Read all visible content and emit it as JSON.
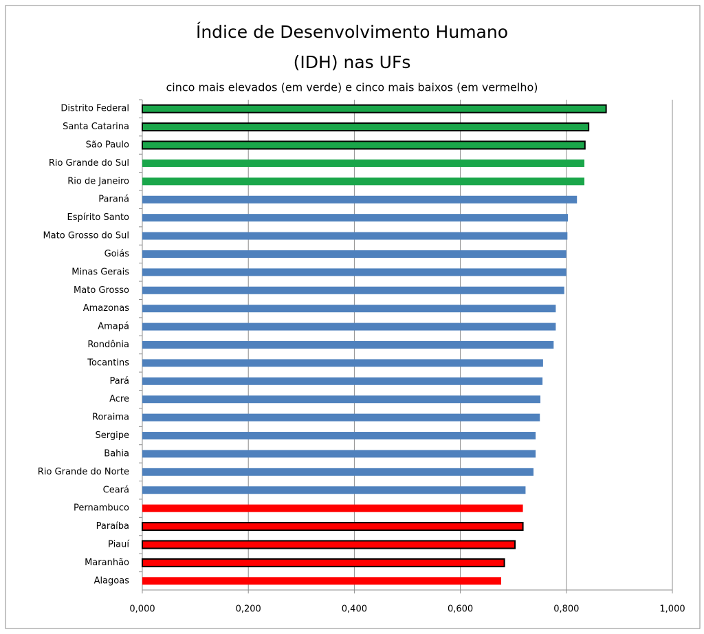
{
  "chart_data": {
    "type": "bar",
    "orientation": "horizontal",
    "title": [
      "Índice de Desenvolvimento Humano",
      "(IDH) nas UFs"
    ],
    "subtitle": "cinco mais elevados (em verde) e cinco mais baixos (em vermelho)",
    "categories": [
      "Distrito Federal",
      "Santa Catarina",
      "São Paulo",
      "Rio Grande do Sul",
      "Rio de Janeiro",
      "Paraná",
      "Espírito Santo",
      "Mato Grosso do Sul",
      "Goiás",
      "Minas Gerais",
      "Mato Grosso",
      "Amazonas",
      "Amapá",
      "Rondônia",
      "Tocantins",
      "Pará",
      "Acre",
      "Roraima",
      "Sergipe",
      "Bahia",
      "Rio Grande do Norte",
      "Ceará",
      "Pernambuco",
      "Paraíba",
      "Piauí",
      "Maranhão",
      "Alagoas"
    ],
    "values": [
      0.875,
      0.842,
      0.835,
      0.834,
      0.834,
      0.82,
      0.803,
      0.802,
      0.8,
      0.8,
      0.796,
      0.78,
      0.78,
      0.776,
      0.756,
      0.755,
      0.751,
      0.75,
      0.742,
      0.742,
      0.738,
      0.723,
      0.718,
      0.718,
      0.703,
      0.683,
      0.677
    ],
    "colors": [
      "#1aa64a",
      "#1aa64a",
      "#1aa64a",
      "#1aa64a",
      "#1aa64a",
      "#4f81bd",
      "#4f81bd",
      "#4f81bd",
      "#4f81bd",
      "#4f81bd",
      "#4f81bd",
      "#4f81bd",
      "#4f81bd",
      "#4f81bd",
      "#4f81bd",
      "#4f81bd",
      "#4f81bd",
      "#4f81bd",
      "#4f81bd",
      "#4f81bd",
      "#4f81bd",
      "#4f81bd",
      "#ff0000",
      "#ff0000",
      "#ff0000",
      "#ff0000",
      "#ff0000"
    ],
    "outlined": [
      true,
      true,
      true,
      false,
      false,
      false,
      false,
      false,
      false,
      false,
      false,
      false,
      false,
      false,
      false,
      false,
      false,
      false,
      false,
      false,
      false,
      false,
      false,
      true,
      true,
      true,
      false
    ],
    "xlim": [
      0,
      1
    ],
    "xticks": [
      {
        "value": 0,
        "label": "0,000"
      },
      {
        "value": 0.2,
        "label": "0,200"
      },
      {
        "value": 0.4,
        "label": "0,400"
      },
      {
        "value": 0.6,
        "label": "0,600"
      },
      {
        "value": 0.8,
        "label": "0,800"
      },
      {
        "value": 1,
        "label": "1,000"
      }
    ],
    "grid": true
  }
}
